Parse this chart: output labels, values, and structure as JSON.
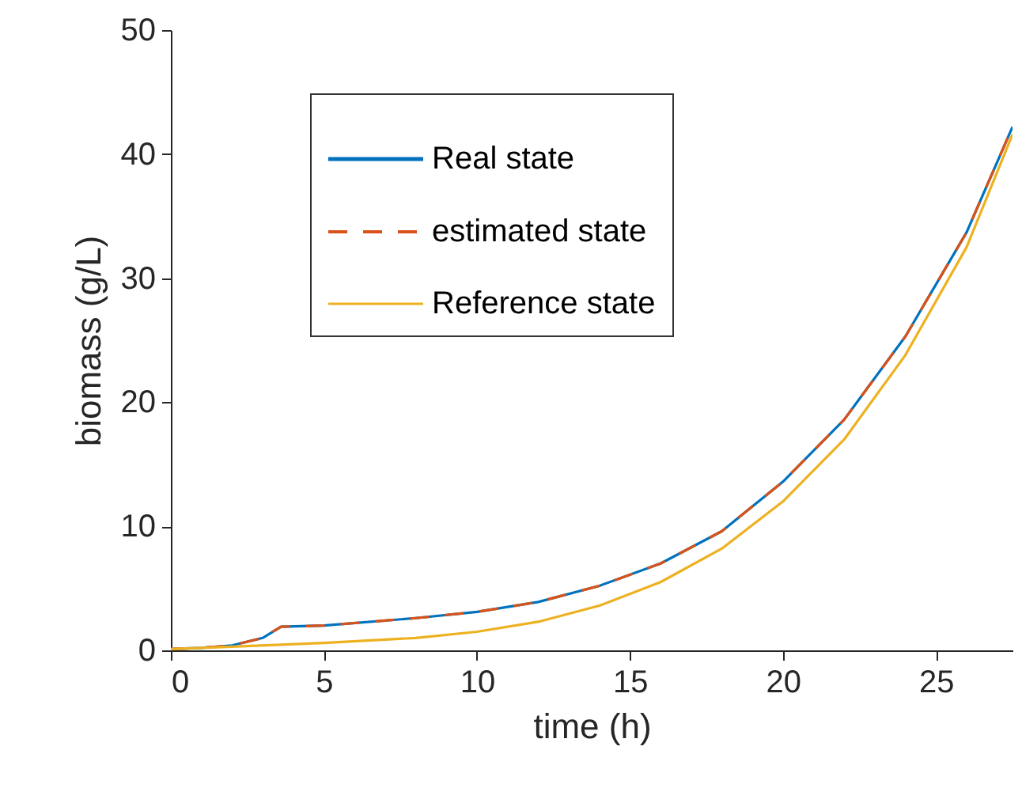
{
  "chart_data": {
    "type": "line",
    "xlabel": "time (h)",
    "ylabel": "biomass (g/L)",
    "xlim": [
      0,
      27.5
    ],
    "ylim": [
      0,
      50
    ],
    "xticks": [
      0,
      5,
      10,
      15,
      20,
      25
    ],
    "yticks": [
      0,
      10,
      20,
      30,
      40,
      50
    ],
    "legend": "top left",
    "series": [
      {
        "name": "Real state",
        "color": "#0072bd",
        "line_style": "solid",
        "x": [
          0,
          1,
          2,
          3,
          3.6,
          5,
          8,
          10,
          12,
          14,
          16,
          18,
          20,
          22,
          24,
          26,
          27.5
        ],
        "values": [
          0.1,
          0.2,
          0.4,
          1.0,
          1.9,
          2.0,
          2.6,
          3.1,
          3.9,
          5.2,
          7.0,
          9.6,
          13.6,
          18.6,
          25.3,
          33.7,
          42.2
        ]
      },
      {
        "name": "estimated state",
        "color": "#d95319",
        "line_style": "dashed",
        "x": [
          0,
          1,
          2,
          3,
          3.6,
          5,
          8,
          10,
          12,
          14,
          16,
          18,
          20,
          22,
          24,
          26,
          27.5
        ],
        "values": [
          0.1,
          0.2,
          0.4,
          1.0,
          1.9,
          2.0,
          2.6,
          3.1,
          3.9,
          5.2,
          7.0,
          9.6,
          13.6,
          18.6,
          25.3,
          33.7,
          42.2
        ]
      },
      {
        "name": "Reference state",
        "color": "#edb120",
        "line_style": "solid",
        "x": [
          0,
          2,
          5,
          8,
          10,
          12,
          14,
          16,
          18,
          20,
          22,
          24,
          26,
          27.5
        ],
        "values": [
          0.1,
          0.3,
          0.6,
          1.0,
          1.5,
          2.3,
          3.6,
          5.5,
          8.2,
          12.0,
          17.0,
          23.8,
          32.5,
          41.6
        ]
      }
    ]
  }
}
